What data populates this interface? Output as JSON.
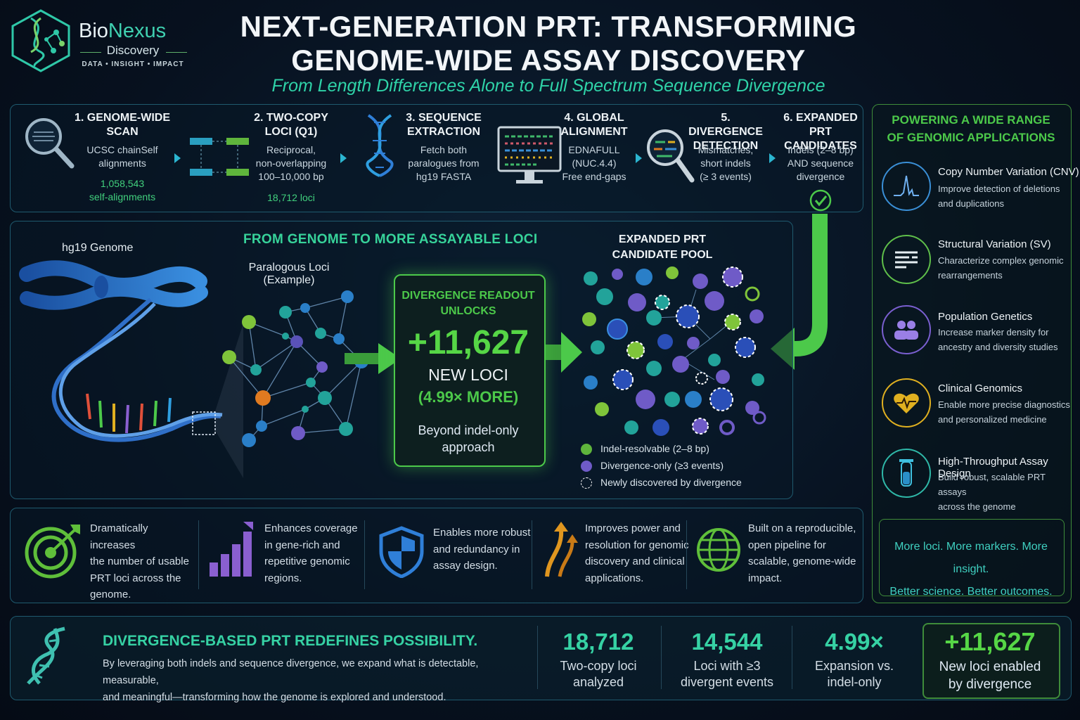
{
  "brand": {
    "name_a": "Bio",
    "name_b": "Nexus",
    "sub": "Discovery",
    "tagline": "DATA • INSIGHT • IMPACT"
  },
  "header": {
    "title_line1": "NEXT-GENERATION PRT: TRANSFORMING",
    "title_line2": "GENOME-WIDE ASSAY DISCOVERY",
    "subtitle": "From Length Differences Alone to Full Spectrum Sequence Divergence"
  },
  "pipeline": [
    {
      "title1": "1. GENOME-WIDE",
      "title2": "SCAN",
      "desc1": "UCSC chainSelf",
      "desc2": "alignments",
      "desc3": "",
      "hi1": "1,058,543",
      "hi2": "self-alignments",
      "icon": "magnifier-icon"
    },
    {
      "title1": "2. TWO-COPY",
      "title2": "LOCI (Q1)",
      "desc1": "Reciprocal,",
      "desc2": "non-overlapping",
      "desc3": "100–10,000 bp",
      "hi1": "18,712 loci",
      "hi2": "",
      "icon": "paired-blocks-icon"
    },
    {
      "title1": "3. SEQUENCE",
      "title2": "EXTRACTION",
      "desc1": "Fetch both",
      "desc2": "paralogues from",
      "desc3": "hg19 FASTA",
      "hi1": "",
      "hi2": "",
      "icon": "dna-helix-icon"
    },
    {
      "title1": "4. GLOBAL",
      "title2": "ALIGNMENT",
      "desc1": "EDNAFULL",
      "desc2": "(NUC.4.4)",
      "desc3": "Free end-gaps",
      "hi1": "",
      "hi2": "",
      "icon": "monitor-icon"
    },
    {
      "title1": "5. DIVERGENCE",
      "title2": "DETECTION",
      "desc1": "Mismatches,",
      "desc2": "short indels",
      "desc3": "(≥ 3 events)",
      "hi1": "",
      "hi2": "",
      "icon": "magnifier-icon"
    },
    {
      "title1": "6. EXPANDED",
      "title2": "PRT CANDIDATES",
      "desc1": "Indels (2–8 bp)",
      "desc2": "AND sequence",
      "desc3": "divergence",
      "hi1": "",
      "hi2": "",
      "icon": "check-circle-icon"
    }
  ],
  "center": {
    "heading": "FROM GENOME TO MORE ASSAYABLE LOCI",
    "genome_label": "hg19 Genome",
    "paralog_label1": "Paralogous Loci",
    "paralog_label2": "(Example)",
    "unlock_head1": "DIVERGENCE READOUT",
    "unlock_head2": "UNLOCKS",
    "unlock_num": "+11,627",
    "unlock_new": "NEW LOCI",
    "unlock_more": "(4.99× MORE)",
    "unlock_note1": "Beyond indel-only",
    "unlock_note2": "approach",
    "pool_title1": "EXPANDED PRT",
    "pool_title2": "CANDIDATE POOL",
    "legend": [
      {
        "label": "Indel-resolvable (2–8 bp)",
        "color": "#5fb53c"
      },
      {
        "label": "Divergence-only (≥3 events)",
        "color": "#6f5bc7"
      },
      {
        "label": "Newly discovered by divergence",
        "color": "#ffffff"
      }
    ]
  },
  "apps": {
    "heading1": "POWERING A WIDE RANGE",
    "heading2": "OF GENOMIC APPLICATIONS",
    "items": [
      {
        "title": "Copy Number Variation (CNV)",
        "desc1": "Improve detection of deletions",
        "desc2": "and duplications",
        "color": "#3a8fd6",
        "icon": "peak-chart-icon"
      },
      {
        "title": "Structural Variation (SV)",
        "desc1": "Characterize complex genomic",
        "desc2": "rearrangements",
        "color": "#5fbf4a",
        "icon": "bars-icon"
      },
      {
        "title": "Population Genetics",
        "desc1": "Increase marker density for",
        "desc2": "ancestry and diversity studies",
        "color": "#7a5fd0",
        "icon": "people-icon"
      },
      {
        "title": "Clinical Genomics",
        "desc1": "Enable more precise diagnostics",
        "desc2": "and personalized medicine",
        "color": "#e0b020",
        "icon": "heart-pulse-icon"
      },
      {
        "title": "High-Throughput Assay Design",
        "desc1": "Build robust, scalable PRT assays",
        "desc2": "across the genome",
        "color": "#2fb8a8",
        "icon": "test-tube-icon"
      }
    ],
    "callout1": "More loci. More markers. More insight.",
    "callout2": "Better science.  Better outcomes."
  },
  "benefits": [
    {
      "l1": "Dramatically increases",
      "l2": "the number of usable",
      "l3": "PRT loci across the",
      "l4": "genome.",
      "icon": "target-icon"
    },
    {
      "l1": "Enhances coverage",
      "l2": "in gene-rich and",
      "l3": "repetitive genomic",
      "l4": "regions.",
      "icon": "bar-growth-icon"
    },
    {
      "l1": "Enables more robust",
      "l2": "and redundancy in",
      "l3": "assay design.",
      "l4": "",
      "icon": "shield-icon"
    },
    {
      "l1": "Improves power and",
      "l2": "resolution for genomic",
      "l3": "discovery and clinical",
      "l4": "applications.",
      "icon": "up-arrows-icon"
    },
    {
      "l1": "Built on a reproducible,",
      "l2": "open pipeline for",
      "l3": "scalable, genome-wide",
      "l4": "impact.",
      "icon": "globe-icon"
    }
  ],
  "footer": {
    "heading": "DIVERGENCE-BASED PRT REDEFINES POSSIBILITY.",
    "text1": "By leveraging both indels and sequence divergence, we expand what is detectable, measurable,",
    "text2": "and meaningful—transforming how the genome is explored and understood.",
    "stats": [
      {
        "num": "18,712",
        "l1": "Two-copy loci",
        "l2": "analyzed"
      },
      {
        "num": "14,544",
        "l1": "Loci with ≥3",
        "l2": "divergent events"
      },
      {
        "num": "4.99×",
        "l1": "Expansion vs.",
        "l2": "indel-only"
      },
      {
        "num": "+11,627",
        "l1": "New loci enabled",
        "l2": "by divergence"
      }
    ]
  }
}
